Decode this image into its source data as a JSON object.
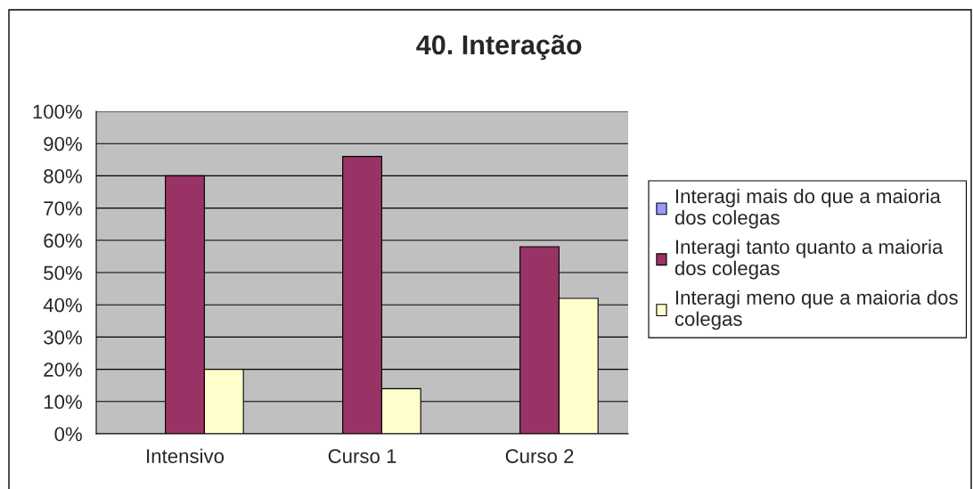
{
  "chart_data": {
    "type": "bar",
    "title": "40. Interação",
    "categories": [
      "Intensivo",
      "Curso 1",
      "Curso 2"
    ],
    "series": [
      {
        "name": "Interagi mais do que a maioria dos colegas",
        "color": "#9999ff",
        "values": [
          null,
          null,
          null
        ]
      },
      {
        "name": "Interagi tanto quanto a maioria dos colegas",
        "color": "#993366",
        "values": [
          80,
          86,
          58
        ]
      },
      {
        "name": "Interagi meno que a maioria dos colegas",
        "color": "#ffffcc",
        "values": [
          20,
          14,
          42
        ]
      }
    ],
    "ylim": [
      0,
      100
    ],
    "yticks": [
      {
        "value": 0,
        "label": "0%"
      },
      {
        "value": 10,
        "label": "10%"
      },
      {
        "value": 20,
        "label": "20%"
      },
      {
        "value": 30,
        "label": "30%"
      },
      {
        "value": 40,
        "label": "40%"
      },
      {
        "value": 50,
        "label": "50%"
      },
      {
        "value": 60,
        "label": "60%"
      },
      {
        "value": 70,
        "label": "70%"
      },
      {
        "value": 80,
        "label": "80%"
      },
      {
        "value": 90,
        "label": "90%"
      },
      {
        "value": 100,
        "label": "100%"
      }
    ],
    "grid": "y",
    "legend": "right"
  }
}
